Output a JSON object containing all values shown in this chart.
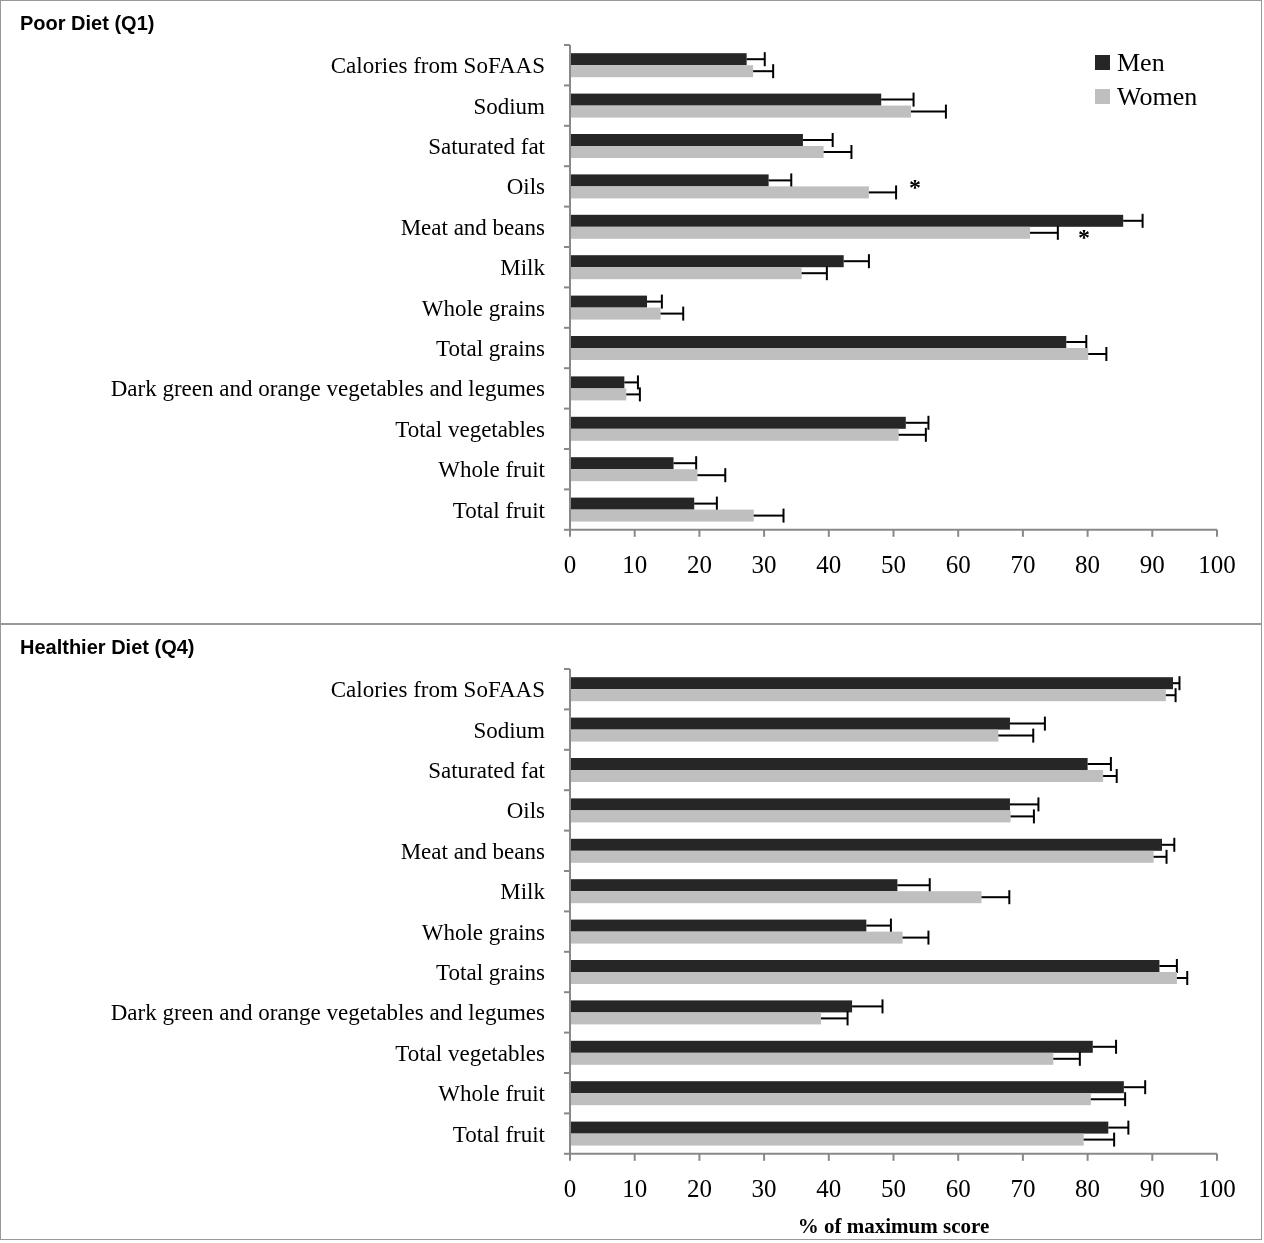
{
  "chart_data": [
    {
      "type": "bar",
      "orientation": "horizontal",
      "title": "Poor Diet (Q1)",
      "categories": [
        "Calories from SoFAAS",
        "Sodium",
        "Saturated fat",
        "Oils",
        "Meat and beans",
        "Milk",
        "Whole grains",
        "Total grains",
        "Dark green and orange vegetables and legumes",
        "Total vegetables",
        "Whole fruit",
        "Total fruit"
      ],
      "series": [
        {
          "name": "Men",
          "color": "#262626",
          "values": [
            27.3,
            48.1,
            36.0,
            30.7,
            85.5,
            42.3,
            11.9,
            76.7,
            8.4,
            51.9,
            16.0,
            19.2
          ],
          "errors": [
            [
              27.3,
              30.1
            ],
            [
              48.1,
              53.1
            ],
            [
              36.0,
              40.6
            ],
            [
              30.7,
              34.2
            ],
            [
              85.5,
              88.5
            ],
            [
              42.3,
              46.2
            ],
            [
              11.9,
              14.2
            ],
            [
              76.7,
              79.8
            ],
            [
              8.4,
              10.5
            ],
            [
              51.9,
              55.4
            ],
            [
              16.0,
              19.5
            ],
            [
              19.2,
              22.7
            ]
          ]
        },
        {
          "name": "Women",
          "color": "#bfbfbf",
          "values": [
            28.3,
            52.7,
            39.2,
            46.2,
            71.1,
            35.8,
            14.0,
            80.1,
            8.7,
            50.8,
            19.7,
            28.4
          ],
          "errors": [
            [
              28.3,
              31.4
            ],
            [
              52.7,
              58.1
            ],
            [
              39.2,
              43.5
            ],
            [
              46.2,
              50.4
            ],
            [
              71.1,
              75.4
            ],
            [
              35.8,
              39.7
            ],
            [
              14.0,
              17.5
            ],
            [
              80.1,
              82.9
            ],
            [
              8.7,
              10.8
            ],
            [
              50.8,
              55.0
            ],
            [
              19.7,
              24.0
            ],
            [
              28.4,
              33.0
            ]
          ]
        }
      ],
      "xlim": [
        0,
        100
      ],
      "xticks": [
        0,
        10,
        20,
        30,
        40,
        50,
        60,
        70,
        80,
        90,
        100
      ],
      "grid": false,
      "legend": "top right",
      "annotations": [
        "*",
        "*"
      ]
    },
    {
      "type": "bar",
      "orientation": "horizontal",
      "title": "Healthier Diet (Q4)",
      "xlabel": "% of maximum score",
      "categories": [
        "Calories from SoFAAS",
        "Sodium",
        "Saturated fat",
        "Oils",
        "Meat and beans",
        "Milk",
        "Whole grains",
        "Total grains",
        "Dark green and orange vegetables and legumes",
        "Total vegetables",
        "Whole fruit",
        "Total fruit"
      ],
      "series": [
        {
          "color": "#262626",
          "values": [
            93.2,
            68.0,
            80.0,
            68.0,
            91.5,
            50.6,
            45.8,
            91.1,
            43.6,
            80.8,
            85.6,
            83.2
          ],
          "errors": [
            [
              93.2,
              94.2
            ],
            [
              68.0,
              73.4
            ],
            [
              80.0,
              83.6
            ],
            [
              68.0,
              72.4
            ],
            [
              91.5,
              93.4
            ],
            [
              50.6,
              55.6
            ],
            [
              45.8,
              49.6
            ],
            [
              91.1,
              93.8
            ],
            [
              43.6,
              48.3
            ],
            [
              80.8,
              84.4
            ],
            [
              85.6,
              88.9
            ],
            [
              83.2,
              86.3
            ]
          ]
        },
        {
          "color": "#bfbfbf",
          "values": [
            92.1,
            66.2,
            82.4,
            68.1,
            90.2,
            63.6,
            51.4,
            93.8,
            38.8,
            74.7,
            80.5,
            79.4
          ],
          "errors": [
            [
              92.1,
              93.6
            ],
            [
              66.2,
              71.6
            ],
            [
              82.4,
              84.5
            ],
            [
              68.1,
              71.7
            ],
            [
              90.2,
              92.2
            ],
            [
              63.6,
              67.9
            ],
            [
              51.4,
              55.4
            ],
            [
              93.8,
              95.4
            ],
            [
              38.8,
              42.9
            ],
            [
              74.7,
              78.8
            ],
            [
              80.5,
              85.8
            ],
            [
              79.4,
              84.1
            ]
          ]
        }
      ],
      "xlim": [
        0,
        100
      ],
      "xticks": [
        0,
        10,
        20,
        30,
        40,
        50,
        60,
        70,
        80,
        90,
        100
      ],
      "grid": false,
      "legend": false
    }
  ]
}
